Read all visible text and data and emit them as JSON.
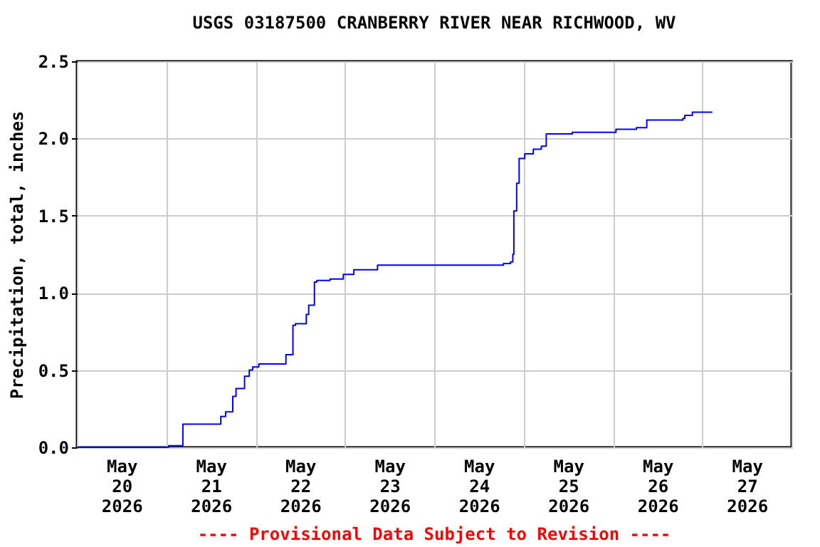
{
  "chart_data": {
    "type": "step",
    "title": "USGS 03187500 CRANBERRY RIVER NEAR RICHWOOD, WV",
    "ylabel": "Precipitation, total, inches",
    "x": [
      "2026-05-20T00:00",
      "2026-05-21T00:39",
      "2026-05-21T04:29",
      "2026-05-21T14:40",
      "2026-05-21T15:58",
      "2026-05-21T17:53",
      "2026-05-21T18:45",
      "2026-05-21T21:03",
      "2026-05-21T22:19",
      "2026-05-21T23:14",
      "2026-05-22T00:53",
      "2026-05-22T08:10",
      "2026-05-22T10:03",
      "2026-05-22T10:44",
      "2026-05-22T13:38",
      "2026-05-22T14:17",
      "2026-05-22T15:49",
      "2026-05-22T16:28",
      "2026-05-22T20:01",
      "2026-05-22T23:35",
      "2026-05-23T02:24",
      "2026-05-23T08:46",
      "2026-05-24T18:36",
      "2026-05-24T20:31",
      "2026-05-24T21:07",
      "2026-05-24T21:24",
      "2026-05-24T22:09",
      "2026-05-24T22:49",
      "2026-05-25T00:20",
      "2026-05-25T02:38",
      "2026-05-25T04:47",
      "2026-05-25T06:06",
      "2026-05-25T13:06",
      "2026-05-26T00:50",
      "2026-05-26T06:19",
      "2026-05-26T09:07",
      "2026-05-26T18:49",
      "2026-05-26T19:19",
      "2026-05-26T21:22",
      "2026-05-27T02:43"
    ],
    "series": [
      {
        "color": "#0000ff",
        "values": [
          0.0,
          0.01,
          0.15,
          0.2,
          0.23,
          0.33,
          0.38,
          0.46,
          0.5,
          0.52,
          0.54,
          0.6,
          0.79,
          0.8,
          0.86,
          0.92,
          1.07,
          1.08,
          1.09,
          1.12,
          1.15,
          1.18,
          1.19,
          1.2,
          1.25,
          1.53,
          1.71,
          1.87,
          1.9,
          1.93,
          1.95,
          2.03,
          2.04,
          2.06,
          2.07,
          2.12,
          2.13,
          2.15,
          2.17,
          2.17
        ]
      }
    ],
    "xlim": [
      "2026-05-20T00:00",
      "2026-05-28T00:00"
    ],
    "xticks": [
      {
        "value": "2026-05-20T00:00",
        "label": null
      },
      {
        "value": "2026-05-20T12:00",
        "label": "May 20 2026"
      },
      {
        "value": "2026-05-21T00:00",
        "label": null
      },
      {
        "value": "2026-05-21T12:00",
        "label": "May 21 2026"
      },
      {
        "value": "2026-05-22T00:00",
        "label": null
      },
      {
        "value": "2026-05-22T12:00",
        "label": "May 22 2026"
      },
      {
        "value": "2026-05-23T00:00",
        "label": null
      },
      {
        "value": "2026-05-23T12:00",
        "label": "May 23 2026"
      },
      {
        "value": "2026-05-24T00:00",
        "label": null
      },
      {
        "value": "2026-05-24T12:00",
        "label": "May 24 2026"
      },
      {
        "value": "2026-05-25T00:00",
        "label": null
      },
      {
        "value": "2026-05-25T12:00",
        "label": "May 25 2026"
      },
      {
        "value": "2026-05-26T00:00",
        "label": null
      },
      {
        "value": "2026-05-26T12:00",
        "label": "May 26 2026"
      },
      {
        "value": "2026-05-27T00:00",
        "label": null
      },
      {
        "value": "2026-05-27T12:00",
        "label": "May 27 2026"
      },
      {
        "value": "2026-05-28T00:00",
        "label": null
      }
    ],
    "ylim": [
      0,
      2.5
    ],
    "yticks": [
      {
        "value": 0,
        "label": "0.0"
      },
      {
        "value": 0.5,
        "label": "0.5"
      },
      {
        "value": 1,
        "label": "1.0"
      },
      {
        "value": 1.5,
        "label": "1.5"
      },
      {
        "value": 2,
        "label": "2.0"
      },
      {
        "value": 2.5,
        "label": "2.5"
      }
    ],
    "grid": true,
    "annotations": [
      "---- Provisional Data Subject to Revision ----"
    ]
  }
}
